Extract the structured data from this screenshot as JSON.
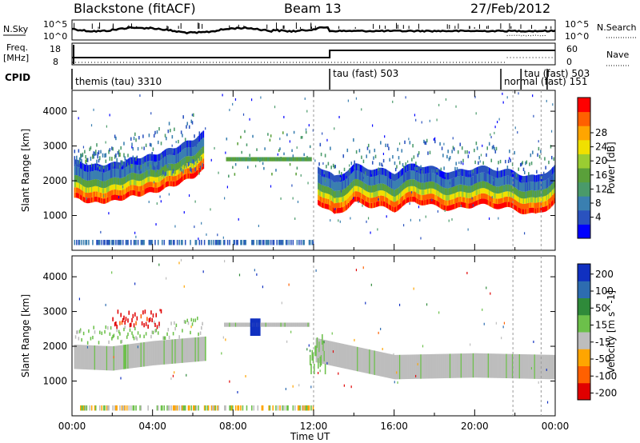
{
  "header": {
    "station": "Blackstone (fitACF)",
    "beam": "Beam 13",
    "date": "27/Feb/2012"
  },
  "labels": {
    "nsky": "N.Sky",
    "nsearch": "N.Search",
    "freq": "Freq.",
    "mhz": "[MHz]",
    "nave": "Nave",
    "cpid": "CPID"
  },
  "summary_axes": {
    "noise_ticks": [
      "10^5",
      "10^0"
    ],
    "noise_right_ticks": [
      "10^5",
      "10^0"
    ],
    "freq_ticks": [
      "18",
      "8"
    ],
    "nave_ticks": [
      "60",
      "0"
    ]
  },
  "cpid_segments": [
    {
      "label": "themis (tau) 3310",
      "start": 0,
      "end": 12.8
    },
    {
      "label": "tau (fast) 503",
      "start": 12.8,
      "end": 21.3
    },
    {
      "label": "normal (fast) 151",
      "start": 21.3,
      "end": 22.3
    },
    {
      "label": "tau (fast) 503",
      "start": 22.3,
      "end": 23.6
    }
  ],
  "chart_data": [
    {
      "type": "heatmap",
      "title": "Power",
      "xlabel": "Time UT",
      "ylabel": "Slant Range [km]",
      "xlim": [
        0,
        24
      ],
      "ylim": [
        0,
        4600
      ],
      "x_ticks": [
        "00:00",
        "04:00",
        "08:00",
        "12:00",
        "16:00",
        "20:00",
        "00:00"
      ],
      "y_ticks": [
        1000,
        2000,
        3000,
        4000
      ],
      "colorbar": {
        "label": "Power [dB]",
        "ticks": [
          4,
          8,
          12,
          16,
          20,
          24,
          28
        ],
        "colors": [
          "#0000ff",
          "#2a52be",
          "#3a7fb0",
          "#4a9a6a",
          "#5aa03a",
          "#9acd32",
          "#f0e000",
          "#ffa500",
          "#ff6000",
          "#ff0000"
        ]
      },
      "features": [
        {
          "feature": "main band",
          "x": [
            0,
            1,
            2,
            3,
            4,
            5,
            6,
            6.5
          ],
          "y": [
            1500,
            1350,
            1400,
            1550,
            1650,
            1850,
            2100,
            2300
          ]
        },
        {
          "feature": "main band",
          "x": [
            12,
            13,
            14,
            15,
            16,
            17,
            18,
            19,
            20,
            21,
            22,
            23,
            24
          ],
          "y": [
            1450,
            1000,
            1350,
            1250,
            1150,
            1400,
            1250,
            1150,
            1300,
            1250,
            1150,
            1000,
            1350
          ]
        },
        {
          "feature": "flat band",
          "x": [
            8,
            9,
            10,
            11,
            11.8
          ],
          "y": [
            2600,
            2600,
            2600,
            2600,
            2600
          ]
        },
        {
          "feature": "ground scatter",
          "x": [
            0,
            12
          ],
          "y": [
            200,
            200
          ]
        }
      ]
    },
    {
      "type": "heatmap",
      "title": "Velocity",
      "xlabel": "Time UT",
      "ylabel": "Slant Range [km]",
      "xlim": [
        0,
        24
      ],
      "ylim": [
        0,
        4600
      ],
      "x_ticks": [
        "00:00",
        "04:00",
        "08:00",
        "12:00",
        "16:00",
        "20:00",
        "00:00"
      ],
      "y_ticks": [
        1000,
        2000,
        3000,
        4000
      ],
      "colorbar": {
        "label": "Velocity [m s^-1]",
        "ticks": [
          200,
          100,
          50,
          15,
          -15,
          -50,
          -100,
          -200
        ],
        "colors": [
          "#1030c0",
          "#2d6cb0",
          "#2f8a3a",
          "#6cc04a",
          "#bdbdbd",
          "#ffa500",
          "#ff6000",
          "#e00000"
        ]
      },
      "features": [
        {
          "feature": "grey band",
          "x": [
            0,
            2,
            4,
            6,
            8,
            12,
            16,
            20,
            24
          ],
          "y": [
            1700,
            1650,
            1800,
            1900,
            2000,
            1900,
            1400,
            1450,
            1400
          ]
        },
        {
          "feature": "red patch",
          "x": [
            2,
            4.3
          ],
          "y": [
            2600,
            2800
          ]
        },
        {
          "feature": "blue patch",
          "x": [
            8.8,
            9.3
          ],
          "y": [
            2300,
            2800
          ]
        }
      ]
    }
  ]
}
